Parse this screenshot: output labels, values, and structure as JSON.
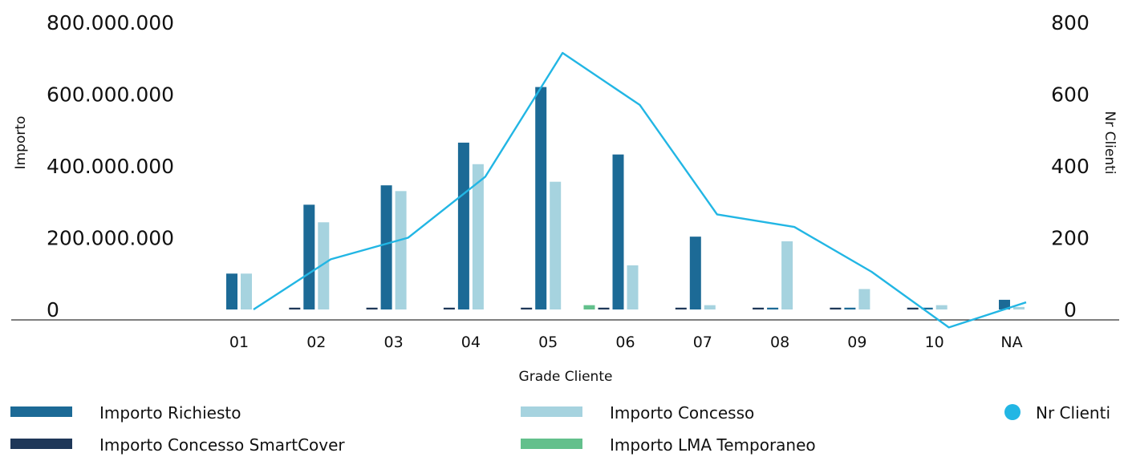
{
  "chart_data": {
    "type": "bar",
    "categories": [
      "01",
      "02",
      "03",
      "04",
      "05",
      "06",
      "07",
      "08",
      "09",
      "10",
      "NA"
    ],
    "xlabel": "Grade Cliente",
    "ylabel": "Importo",
    "y2label": "Nr Clienti",
    "ylim": [
      0,
      800000000
    ],
    "y2lim": [
      0,
      800
    ],
    "yticks": [
      "0",
      "200.000.000",
      "400.000.000",
      "600.000.000",
      "800.000.000"
    ],
    "y2ticks": [
      "0",
      "200",
      "400",
      "600",
      "800"
    ],
    "legend_position": "bottom",
    "colors": {
      "importo_richiesto": "#1c6a96",
      "importo_concesso": "#a6d3df",
      "smartcover": "#1e3758",
      "lma": "#63c08c",
      "nr_clienti": "#22b6e4"
    },
    "series": [
      {
        "name": "Importo Concesso SmartCover",
        "type": "bar",
        "values": [
          null,
          5000000,
          5000000,
          5000000,
          5000000,
          5000000,
          5000000,
          5000000,
          5000000,
          5000000,
          null
        ]
      },
      {
        "name": "Importo LMA Temporaneo",
        "type": "bar",
        "values": [
          null,
          null,
          null,
          null,
          null,
          12000000,
          null,
          null,
          null,
          null,
          null
        ]
      },
      {
        "name": "Importo Richiesto",
        "type": "bar",
        "values": [
          100000000,
          292000000,
          346000000,
          465000000,
          620000000,
          432000000,
          203000000,
          5000000,
          5000000,
          5000000,
          27000000
        ]
      },
      {
        "name": "Importo Concesso",
        "type": "bar",
        "values": [
          100000000,
          243000000,
          330000000,
          405000000,
          356000000,
          123000000,
          12000000,
          190000000,
          57000000,
          12000000,
          7000000
        ]
      },
      {
        "name": "Nr Clienti",
        "type": "line",
        "axis": "right",
        "values": [
          0,
          140,
          200,
          370,
          715,
          570,
          265,
          230,
          105,
          -50,
          20
        ]
      }
    ],
    "legend": [
      {
        "label": "Importo Richiesto",
        "kind": "bar",
        "series": "importo_richiesto"
      },
      {
        "label": "Importo Concesso",
        "kind": "bar",
        "series": "importo_concesso"
      },
      {
        "label": "Nr Clienti",
        "kind": "dot",
        "series": "nr_clienti"
      },
      {
        "label": "Importo Concesso SmartCover",
        "kind": "bar",
        "series": "smartcover"
      },
      {
        "label": "Importo LMA Temporaneo",
        "kind": "bar",
        "series": "lma"
      }
    ]
  }
}
